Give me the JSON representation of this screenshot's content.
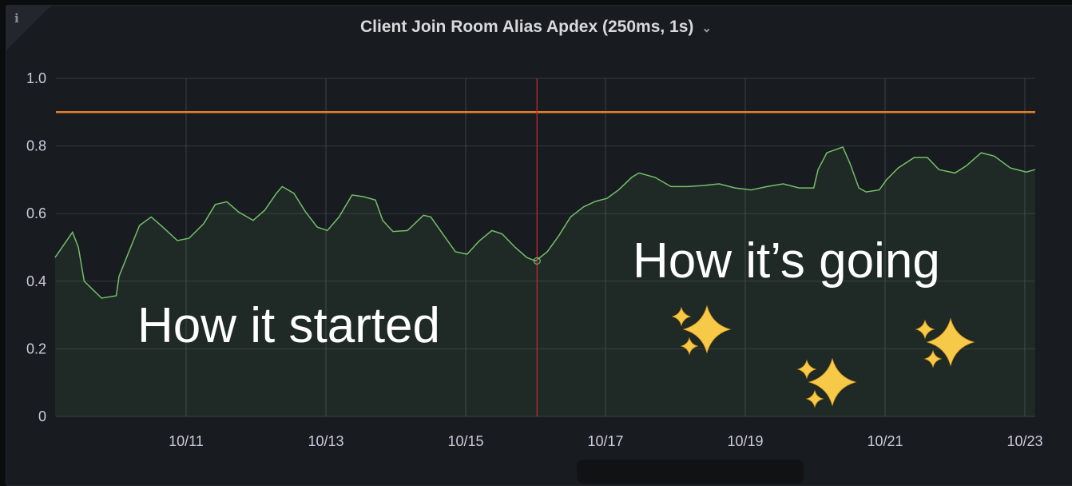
{
  "panel": {
    "title": "Client Join Room Alias Apdex (250ms, 1s)",
    "info_icon": "info-icon",
    "menu_icon": "chevron-down-icon"
  },
  "chart_data": {
    "type": "area",
    "title": "Client Join Room Alias Apdex (250ms, 1s)",
    "xlabel": "",
    "ylabel": "",
    "xlim": [
      "10/09 03:00",
      "10/23 03:30"
    ],
    "ylim": [
      0,
      1.0
    ],
    "x_ticks": [
      "10/11",
      "10/13",
      "10/15",
      "10/17",
      "10/19",
      "10/21",
      "10/23"
    ],
    "y_ticks": [
      "0",
      "0.2",
      "0.4",
      "0.6",
      "0.8",
      "1.0"
    ],
    "grid": true,
    "legend": "none",
    "series_color": "#73bf69",
    "threshold": {
      "value": 0.9,
      "color": "#e0822a"
    },
    "marker_line": {
      "x": "10/16 00:30",
      "color": "#c4262e"
    },
    "annotations": [
      {
        "text": "How it started"
      },
      {
        "text": "How it’s going"
      }
    ],
    "sparkle_icon": "sparkles-icon",
    "series": [
      {
        "x": [
          "10/09 03:00",
          "10/09 09:00",
          "10/09 11:00",
          "10/09 13:00",
          "10/09 16:00",
          "10/09 19:00",
          "10/10 00:00",
          "10/10 01:00",
          "10/10 04:00",
          "10/10 08:00",
          "10/10 12:00",
          "10/10 16:00",
          "10/10 21:00",
          "10/11 01:00",
          "10/11 06:00",
          "10/11 10:00",
          "10/11 14:00",
          "10/11 18:00",
          "10/11 23:00",
          "10/12 03:00",
          "10/12 07:00",
          "10/12 09:00",
          "10/12 13:00",
          "10/12 17:00",
          "10/12 21:00",
          "10/13 00:30",
          "10/13 04:30",
          "10/13 09:00",
          "10/13 13:00",
          "10/13 17:00",
          "10/13 19:30",
          "10/13 23:00",
          "10/14 04:00",
          "10/14 09:30",
          "10/14 12:00",
          "10/14 16:30",
          "10/14 20:30",
          "10/15 00:30",
          "10/15 04:30",
          "10/15 09:00",
          "10/15 12:30",
          "10/15 17:00",
          "10/15 21:00",
          "10/16 00:00",
          "10/16 04:00",
          "10/16 08:00",
          "10/16 12:00",
          "10/16 16:30",
          "10/16 20:30",
          "10/17 00:30",
          "10/17 04:30",
          "10/17 09:00",
          "10/17 11:30",
          "10/17 17:00",
          "10/17 22:30",
          "10/18 04:00",
          "10/18 09:30",
          "10/18 15:00",
          "10/18 20:30",
          "10/19 02:00",
          "10/19 07:30",
          "10/19 13:00",
          "10/19 18:30",
          "10/19 23:30",
          "10/20 01:00",
          "10/20 04:00",
          "10/20 09:30",
          "10/20 12:00",
          "10/20 15:00",
          "10/20 17:30",
          "10/20 22:00",
          "10/21 00:30",
          "10/21 04:30",
          "10/21 10:00",
          "10/21 14:30",
          "10/21 18:30",
          "10/22 00:00",
          "10/22 04:00",
          "10/22 09:00",
          "10/22 13:30",
          "10/22 19:00",
          "10/23 00:30",
          "10/23 03:30"
        ],
        "y": [
          0.47,
          0.545,
          0.5,
          0.4,
          0.375,
          0.35,
          0.357,
          0.415,
          0.48,
          0.565,
          0.59,
          0.56,
          0.52,
          0.527,
          0.57,
          0.627,
          0.635,
          0.605,
          0.58,
          0.61,
          0.66,
          0.68,
          0.66,
          0.605,
          0.56,
          0.55,
          0.59,
          0.655,
          0.65,
          0.64,
          0.58,
          0.547,
          0.55,
          0.595,
          0.59,
          0.535,
          0.487,
          0.48,
          0.518,
          0.55,
          0.54,
          0.5,
          0.47,
          0.46,
          0.487,
          0.535,
          0.59,
          0.62,
          0.636,
          0.645,
          0.67,
          0.707,
          0.72,
          0.707,
          0.68,
          0.68,
          0.683,
          0.688,
          0.676,
          0.67,
          0.68,
          0.688,
          0.676,
          0.676,
          0.73,
          0.78,
          0.797,
          0.747,
          0.676,
          0.664,
          0.67,
          0.7,
          0.735,
          0.766,
          0.766,
          0.73,
          0.72,
          0.742,
          0.78,
          0.77,
          0.735,
          0.723,
          0.73
        ]
      }
    ]
  }
}
